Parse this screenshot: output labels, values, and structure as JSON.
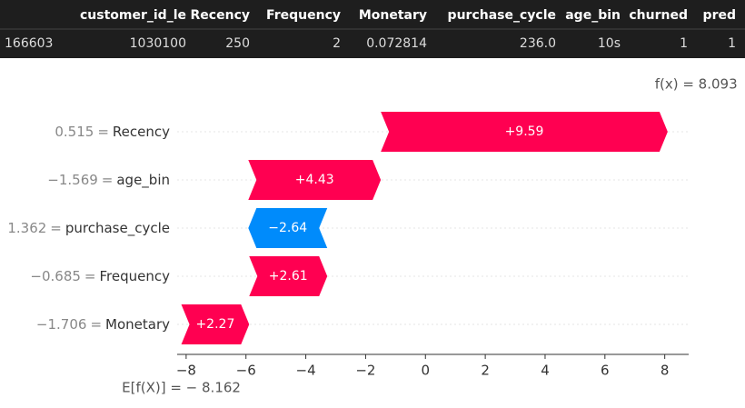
{
  "table": {
    "columns": [
      "",
      "customer_id_le",
      "Recency",
      "Frequency",
      "Monetary",
      "purchase_cycle",
      "age_bin",
      "churned",
      "pred"
    ],
    "rows": [
      [
        "166603",
        "1030100",
        "250",
        "2",
        "0.072814",
        "236.0",
        "10s",
        "1",
        "1"
      ]
    ]
  },
  "chart_data": {
    "type": "waterfall",
    "features": [
      "Recency",
      "age_bin",
      "purchase_cycle",
      "Frequency",
      "Monetary"
    ],
    "feature_values": [
      "0.515",
      "−1.569",
      "1.362",
      "−0.685",
      "−1.706"
    ],
    "equals": "=",
    "values": [
      9.59,
      4.43,
      -2.64,
      2.61,
      2.27
    ],
    "value_labels": [
      "+9.59",
      "+4.43",
      "−2.64",
      "+2.61",
      "+2.27"
    ],
    "base": {
      "value": -8.162,
      "label": "E[f(X)] = − 8.162"
    },
    "output": {
      "value": 8.093,
      "label": "f(x) = 8.093"
    },
    "positive_color": "#ff0051",
    "negative_color": "#008bfb",
    "xlim": [
      -8.3,
      8.8
    ],
    "xticks": [
      {
        "value": -8,
        "label": "−8"
      },
      {
        "value": -6,
        "label": "−6"
      },
      {
        "value": -4,
        "label": "−4"
      },
      {
        "value": -2,
        "label": "−2"
      },
      0,
      2,
      4,
      6,
      8
    ],
    "grid": true
  }
}
